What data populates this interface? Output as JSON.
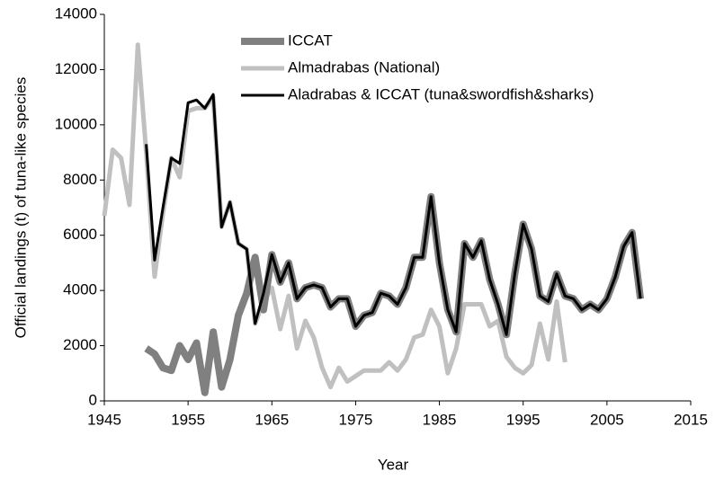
{
  "chart_data": {
    "type": "line",
    "xlabel": "Year",
    "ylabel": "Official landings (t) of tuna-like species",
    "xlim": [
      1945,
      2015
    ],
    "xticks": [
      1945,
      1955,
      1965,
      1975,
      1985,
      1995,
      2005,
      2015
    ],
    "ylim": [
      0,
      14000
    ],
    "yticks": [
      0,
      2000,
      4000,
      6000,
      8000,
      10000,
      12000,
      14000
    ],
    "grid": false,
    "legend": "top",
    "series": [
      {
        "name": "ICCAT",
        "color": "#808080",
        "width": 8,
        "x": [
          1950,
          1951,
          1952,
          1953,
          1954,
          1955,
          1956,
          1957,
          1958,
          1959,
          1960,
          1961,
          1962,
          1963,
          1964,
          1965,
          1966,
          1967,
          1968,
          1969,
          1970,
          1971,
          1972,
          1973,
          1974,
          1975,
          1976,
          1977,
          1978,
          1979,
          1980,
          1981,
          1982,
          1983,
          1984,
          1985,
          1986,
          1987,
          1988,
          1989,
          1990,
          1991,
          1992,
          1993,
          1994,
          1995,
          1996,
          1997,
          1998,
          1999,
          2000,
          2001,
          2002,
          2003,
          2004,
          2005,
          2006,
          2007,
          2008,
          2009
        ],
        "values": [
          1900,
          1700,
          1200,
          1100,
          2000,
          1500,
          2100,
          300,
          2500,
          500,
          1500,
          3100,
          3900,
          5200,
          3300,
          5300,
          4300,
          5000,
          3700,
          4100,
          4200,
          4100,
          3400,
          3700,
          3700,
          2700,
          3100,
          3200,
          3900,
          3800,
          3500,
          4100,
          5200,
          5200,
          7400,
          5000,
          3300,
          2500,
          5700,
          5200,
          5800,
          4400,
          3500,
          2400,
          4600,
          6400,
          5500,
          3800,
          3600,
          4600,
          3800,
          3700,
          3300,
          3500,
          3300,
          3700,
          4500,
          5600,
          6100,
          3700
        ]
      },
      {
        "name": "Almadrabas (National)",
        "color": "#c0c0c0",
        "width": 5,
        "x": [
          1945,
          1946,
          1947,
          1948,
          1949,
          1950,
          1951,
          1952,
          1953,
          1954,
          1955,
          1956,
          1957,
          1958,
          1959,
          1960,
          1961,
          1962,
          1963,
          1964,
          1965,
          1966,
          1967,
          1968,
          1969,
          1970,
          1971,
          1972,
          1973,
          1974,
          1975,
          1976,
          1977,
          1978,
          1979,
          1980,
          1981,
          1982,
          1983,
          1984,
          1985,
          1986,
          1987,
          1988,
          1989,
          1990,
          1991,
          1992,
          1993,
          1994,
          1995,
          1996,
          1997,
          1998,
          1999,
          2000
        ],
        "values": [
          6700,
          9100,
          8800,
          7100,
          12900,
          9000,
          4500,
          6800,
          8800,
          8100,
          10500,
          10600,
          10600,
          11000,
          6300,
          7200,
          5700,
          5500,
          2800,
          3600,
          4100,
          2600,
          3800,
          1900,
          2900,
          2300,
          1200,
          500,
          1200,
          700,
          900,
          1100,
          1100,
          1100,
          1400,
          1100,
          1500,
          2300,
          2400,
          3300,
          2700,
          1000,
          1900,
          3500,
          3500,
          3500,
          2700,
          2900,
          1600,
          1200,
          1000,
          1300,
          2800,
          1500,
          3600,
          1400
        ]
      },
      {
        "name": "Aladrabas & ICCAT (tuna&swordfish&sharks)",
        "color": "#000000",
        "width": 3,
        "x": [
          1950,
          1951,
          1952,
          1953,
          1954,
          1955,
          1956,
          1957,
          1958,
          1959,
          1960,
          1961,
          1962,
          1963,
          1964,
          1965,
          1966,
          1967,
          1968,
          1969,
          1970,
          1971,
          1972,
          1973,
          1974,
          1975,
          1976,
          1977,
          1978,
          1979,
          1980,
          1981,
          1982,
          1983,
          1984,
          1985,
          1986,
          1987,
          1988,
          1989,
          1990,
          1991,
          1992,
          1993,
          1994,
          1995,
          1996,
          1997,
          1998,
          1999,
          2000,
          2001,
          2002,
          2003,
          2004,
          2005,
          2006,
          2007,
          2008,
          2009
        ],
        "values": [
          9300,
          5100,
          7000,
          8800,
          8600,
          10800,
          10900,
          10600,
          11100,
          6300,
          7200,
          5700,
          5500,
          2800,
          3900,
          5300,
          4300,
          5000,
          3700,
          4100,
          4200,
          4100,
          3400,
          3700,
          3700,
          2700,
          3100,
          3200,
          3900,
          3800,
          3500,
          4100,
          5200,
          5200,
          7400,
          5000,
          3300,
          2500,
          5700,
          5200,
          5800,
          4400,
          3500,
          2400,
          4600,
          6400,
          5500,
          3800,
          3600,
          4600,
          3800,
          3700,
          3300,
          3500,
          3300,
          3700,
          4500,
          5600,
          6100,
          3700
        ]
      }
    ]
  }
}
